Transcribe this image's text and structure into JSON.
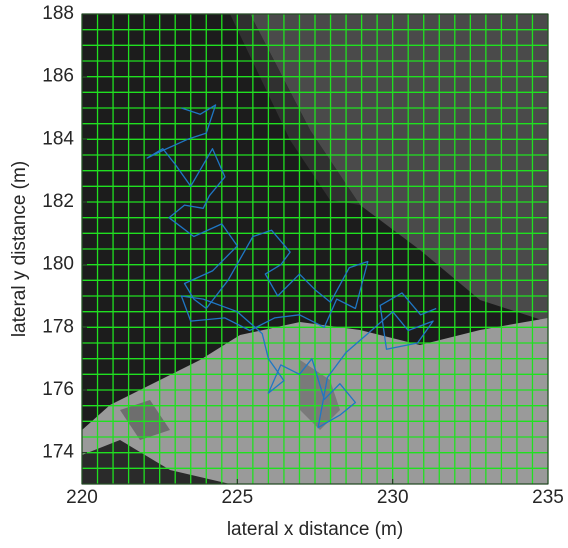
{
  "chart_data": {
    "type": "line",
    "xlabel": "lateral x distance (m)",
    "ylabel": "lateral y distance (m)",
    "xlim": [
      220,
      235
    ],
    "ylim": [
      173,
      188
    ],
    "xticks": [
      220,
      225,
      230,
      235
    ],
    "yticks": [
      174,
      176,
      178,
      180,
      182,
      184,
      186,
      188
    ],
    "grid": true,
    "grid_color": "#20e020",
    "xgrid": [
      220,
      220.5,
      221,
      221.5,
      222,
      222.5,
      223,
      223.5,
      224,
      224.5,
      225,
      225.5,
      226,
      226.5,
      227,
      227.5,
      228,
      228.5,
      229,
      229.5,
      230,
      230.5,
      231,
      231.5,
      232,
      232.5,
      233,
      233.5,
      234,
      234.5,
      235
    ],
    "ygrid": [
      173,
      173.5,
      174,
      174.5,
      175,
      175.5,
      176,
      176.5,
      177,
      177.5,
      178,
      178.5,
      179,
      179.5,
      180,
      180.5,
      181,
      181.5,
      182,
      182.5,
      183,
      183.5,
      184,
      184.5,
      185,
      185.5,
      186,
      186.5,
      187,
      187.5,
      188
    ],
    "color": "#1f77c4",
    "x": [
      223.2,
      223.8,
      224.3,
      224.0,
      223.4,
      222.5,
      222.1,
      222.6,
      223.0,
      223.5,
      224.2,
      224.6,
      224.1,
      223.9,
      223.3,
      222.8,
      223.6,
      224.5,
      225.0,
      224.6,
      224.2,
      223.3,
      223.6,
      224.0,
      224.7,
      225.5,
      226.1,
      226.7,
      226.4,
      225.9,
      226.3,
      227.0,
      227.5,
      228.0,
      228.6,
      229.2,
      228.8,
      228.2,
      227.8,
      227.0,
      226.2,
      225.4,
      224.6,
      223.5,
      223.2,
      223.9,
      225.0,
      225.8,
      226.0,
      226.5,
      226.0,
      226.4,
      227.0,
      227.4,
      227.8,
      228.3,
      228.8,
      228.3,
      227.6,
      227.9,
      228.5,
      229.2,
      230.0,
      230.5,
      231.3,
      230.8,
      229.8,
      229.6,
      230.3,
      230.9,
      231.4
    ],
    "values": [
      185.0,
      184.8,
      185.1,
      184.2,
      184.0,
      183.6,
      183.4,
      183.7,
      183.2,
      182.5,
      183.7,
      182.8,
      182.2,
      181.8,
      181.9,
      181.5,
      180.9,
      181.3,
      180.6,
      180.2,
      179.8,
      179.4,
      178.9,
      178.6,
      179.5,
      180.9,
      181.1,
      180.4,
      180.0,
      179.7,
      179.0,
      179.7,
      179.2,
      178.8,
      179.9,
      180.1,
      178.6,
      178.9,
      178.0,
      178.4,
      178.3,
      177.9,
      178.3,
      178.2,
      179.0,
      178.9,
      178.5,
      177.8,
      177.0,
      176.3,
      175.9,
      176.8,
      176.5,
      177.0,
      175.7,
      176.2,
      175.6,
      175.2,
      174.8,
      176.4,
      177.2,
      177.8,
      178.5,
      177.9,
      178.2,
      177.5,
      177.3,
      178.7,
      179.1,
      178.4,
      178.6
    ]
  }
}
